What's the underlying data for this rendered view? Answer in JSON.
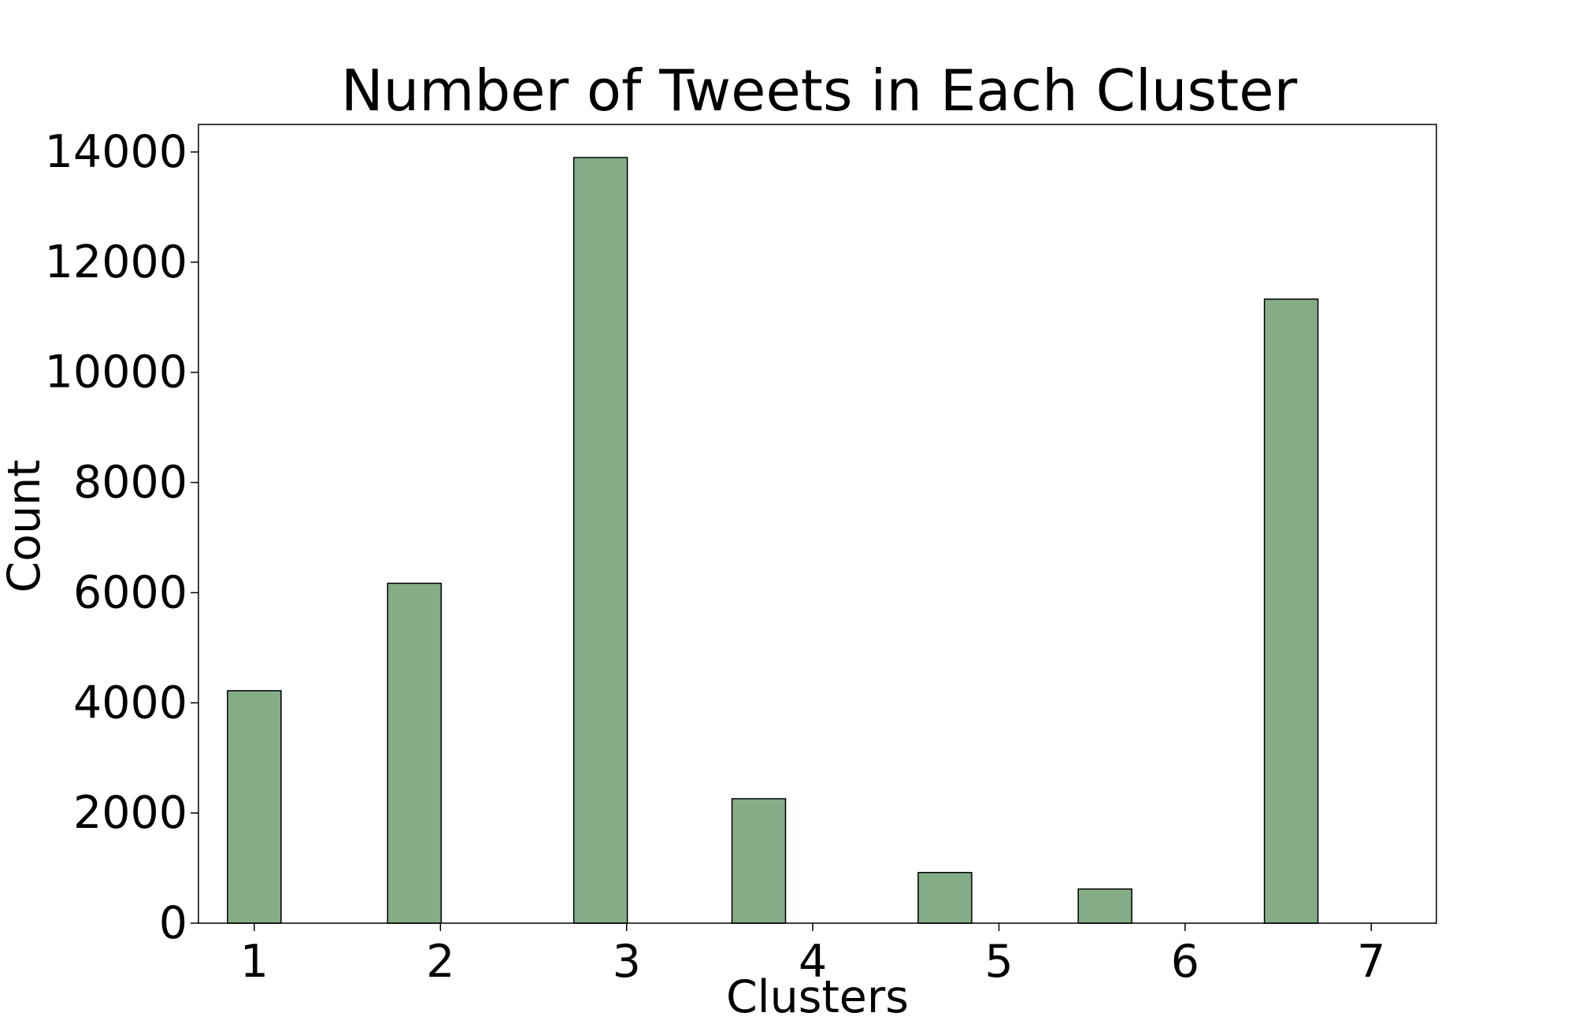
{
  "chart_data": {
    "type": "bar",
    "title": "Number of Tweets in Each Cluster",
    "xlabel": "Clusters",
    "ylabel": "Count",
    "categories": [
      "1",
      "2",
      "3",
      "4",
      "5",
      "6",
      "7"
    ],
    "x": [
      1,
      2,
      3,
      4,
      5,
      6,
      7
    ],
    "x_positions": [
      1.0,
      1.86,
      2.86,
      3.71,
      4.71,
      5.57,
      6.57
    ],
    "values": [
      4220,
      6170,
      13900,
      2260,
      920,
      620,
      11330
    ],
    "xlim": [
      0.7,
      7.35
    ],
    "xticks": [
      1,
      2,
      3,
      4,
      5,
      6,
      7
    ],
    "ylim": [
      0,
      14500
    ],
    "yticks": [
      0,
      2000,
      4000,
      6000,
      8000,
      10000,
      12000,
      14000
    ],
    "grid": false,
    "legend": "none",
    "bar_color": "#84ad87",
    "edge_color": "#000000"
  }
}
